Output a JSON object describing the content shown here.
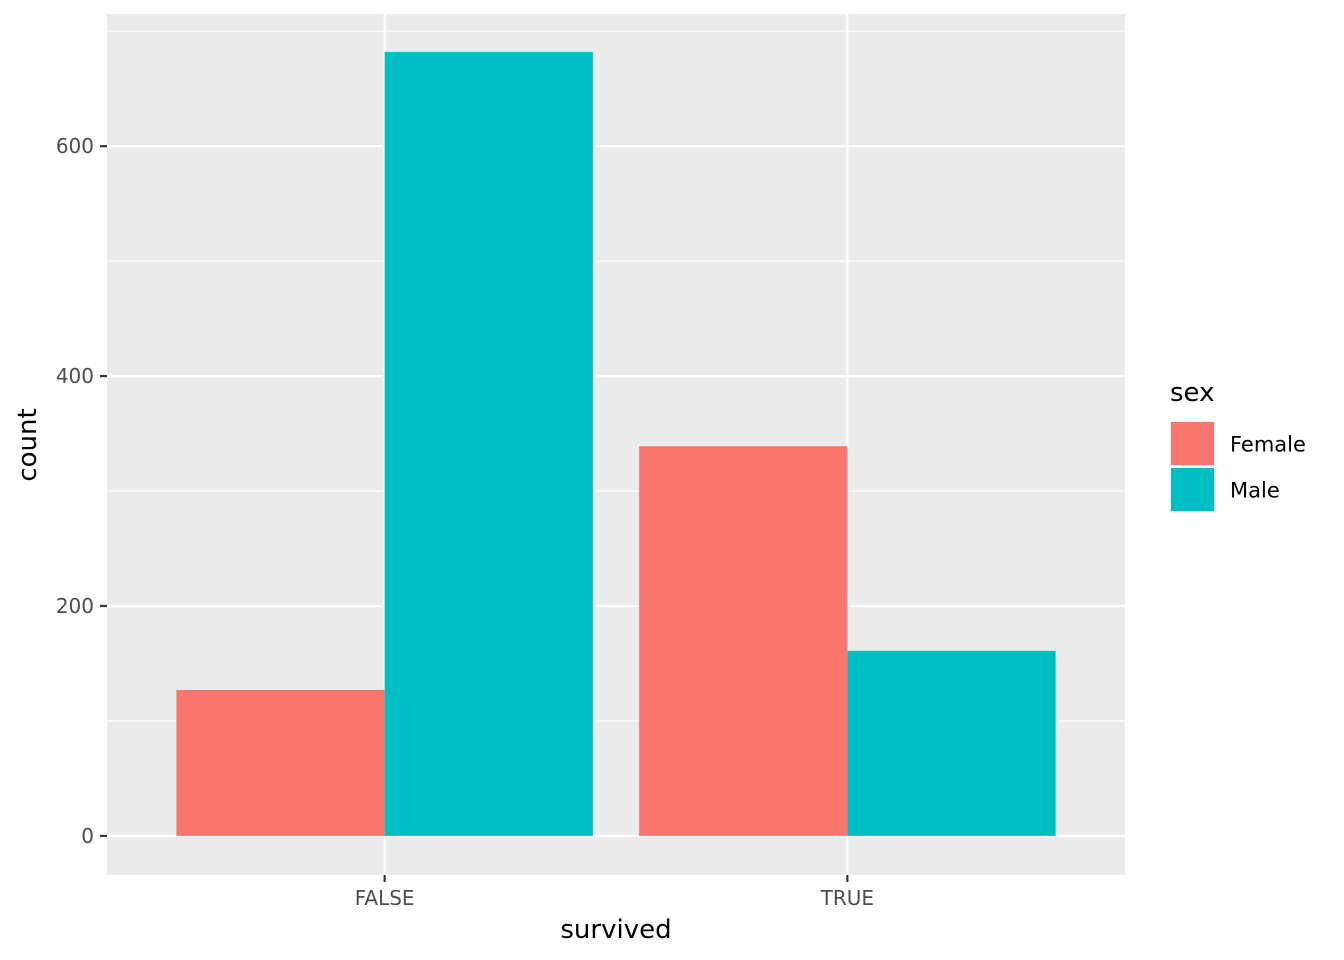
{
  "chart_data": {
    "type": "bar",
    "categories": [
      "FALSE",
      "TRUE"
    ],
    "series": [
      {
        "name": "Female",
        "values": [
          127,
          339
        ],
        "color": "#F8766D"
      },
      {
        "name": "Male",
        "values": [
          682,
          161
        ],
        "color": "#00BFC4"
      }
    ],
    "xlabel": "survived",
    "ylabel": "count",
    "ylim": [
      -34,
      715
    ],
    "yticks": [
      0,
      200,
      400,
      600
    ],
    "ytick_labels": [
      "0",
      "200",
      "400",
      "600"
    ],
    "legend": {
      "title": "sex",
      "placement": "right"
    },
    "grid": true,
    "panel_background": "#EBEBEB",
    "gridline_color": "#FFFFFF"
  }
}
